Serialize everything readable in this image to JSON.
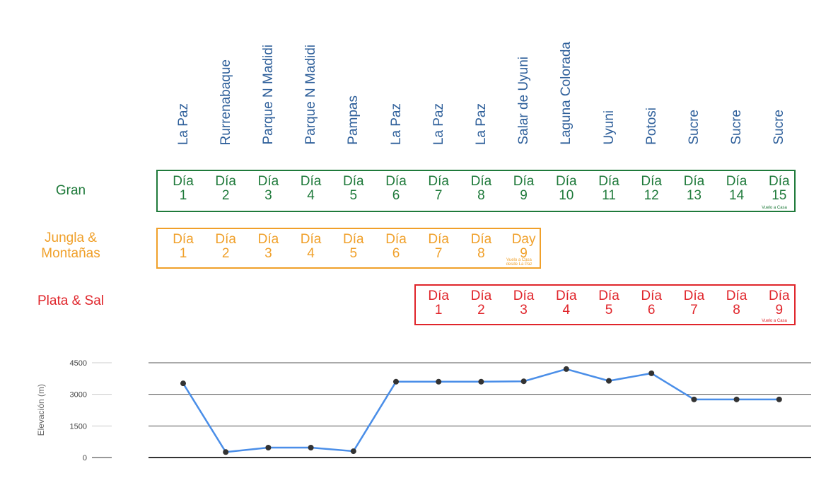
{
  "locations": [
    "La Paz",
    "Rurrenabaque",
    "Parque N Madidi",
    "Parque N Madidi",
    "Pampas",
    "La Paz",
    "La Paz",
    "La Paz",
    "Salar de Uyuni",
    "Laguna Colorada",
    "Uyuni",
    "Potosi",
    "Sucre",
    "Sucre",
    "Sucre"
  ],
  "plans": {
    "gran": {
      "label": "Gran",
      "color": "#1f7a3b",
      "days": [
        {
          "w": "Día",
          "n": "1"
        },
        {
          "w": "Día",
          "n": "2"
        },
        {
          "w": "Día",
          "n": "3"
        },
        {
          "w": "Día",
          "n": "4"
        },
        {
          "w": "Día",
          "n": "5"
        },
        {
          "w": "Día",
          "n": "6"
        },
        {
          "w": "Día",
          "n": "7"
        },
        {
          "w": "Día",
          "n": "8"
        },
        {
          "w": "Día",
          "n": "9"
        },
        {
          "w": "Día",
          "n": "10"
        },
        {
          "w": "Día",
          "n": "11"
        },
        {
          "w": "Día",
          "n": "12"
        },
        {
          "w": "Día",
          "n": "13"
        },
        {
          "w": "Día",
          "n": "14"
        },
        {
          "w": "Día",
          "n": "15"
        }
      ],
      "note": "Vuelo a Casa"
    },
    "jungla": {
      "label_line1": "Jungla &",
      "label_line2": "Montañas",
      "color": "#f0a02a",
      "days": [
        {
          "w": "Día",
          "n": "1"
        },
        {
          "w": "Día",
          "n": "2"
        },
        {
          "w": "Día",
          "n": "3"
        },
        {
          "w": "Día",
          "n": "4"
        },
        {
          "w": "Día",
          "n": "5"
        },
        {
          "w": "Día",
          "n": "6"
        },
        {
          "w": "Día",
          "n": "7"
        },
        {
          "w": "Día",
          "n": "8"
        },
        {
          "w": "Day",
          "n": "9"
        }
      ],
      "note_line1": "Vuelo a Casa",
      "note_line2": "desde La Paz"
    },
    "plata": {
      "label": "Plata & Sal",
      "color": "#e0252b",
      "days": [
        {
          "w": "Día",
          "n": "1"
        },
        {
          "w": "Día",
          "n": "2"
        },
        {
          "w": "Día",
          "n": "3"
        },
        {
          "w": "Día",
          "n": "4"
        },
        {
          "w": "Día",
          "n": "5"
        },
        {
          "w": "Día",
          "n": "6"
        },
        {
          "w": "Día",
          "n": "7"
        },
        {
          "w": "Día",
          "n": "8"
        },
        {
          "w": "Día",
          "n": "9"
        }
      ],
      "note": "Vuelo a Casa"
    }
  },
  "chart_data": {
    "type": "line",
    "x": [
      1,
      2,
      3,
      4,
      5,
      6,
      7,
      8,
      9,
      10,
      11,
      12,
      13,
      14,
      15
    ],
    "series": [
      {
        "values": [
          3520,
          260,
          470,
          470,
          300,
          3600,
          3600,
          3600,
          3620,
          4200,
          3640,
          4000,
          2760,
          2760,
          2760
        ]
      }
    ],
    "ylabel": "Elevación (m)",
    "yticks": [
      0,
      1500,
      3000,
      4500
    ],
    "ytick_labels": [
      "0",
      "1500",
      "3000",
      "4500"
    ],
    "ylim": [
      0,
      4500
    ],
    "grid": true,
    "line_color": "#4a8ee8",
    "marker_color": "#333333"
  }
}
